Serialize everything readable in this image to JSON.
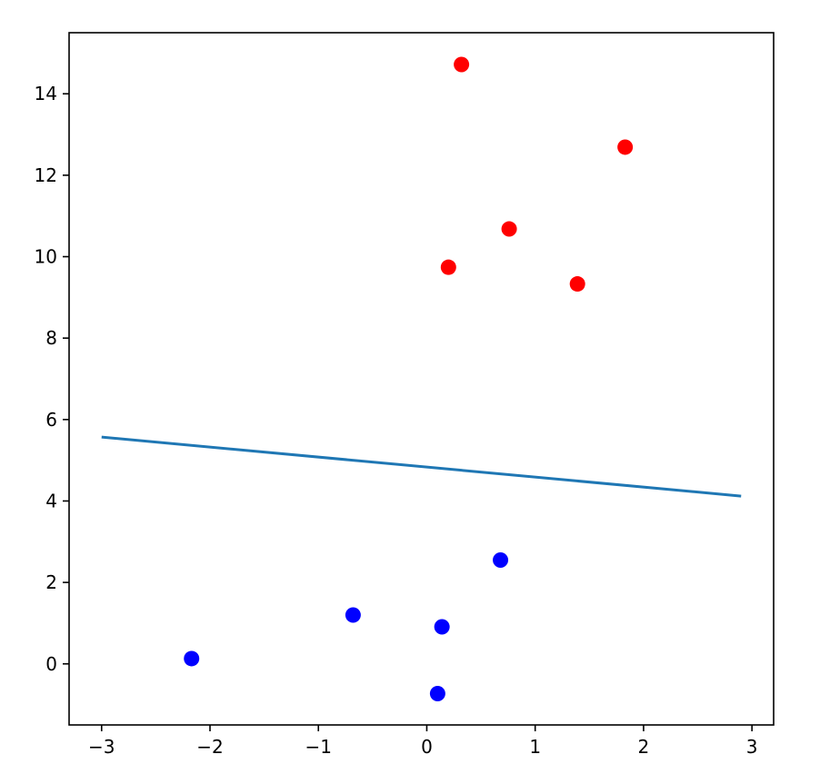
{
  "chart_data": {
    "type": "scatter",
    "title": "",
    "xlabel": "",
    "ylabel": "",
    "xlim": [
      -3.3,
      3.2
    ],
    "ylim": [
      -1.5,
      15.5
    ],
    "x_ticks": [
      -3,
      -2,
      -1,
      0,
      1,
      2,
      3
    ],
    "x_tick_labels": [
      "−3",
      "−2",
      "−1",
      "0",
      "1",
      "2",
      "3"
    ],
    "y_ticks": [
      0,
      2,
      4,
      6,
      8,
      10,
      12,
      14
    ],
    "y_tick_labels": [
      "0",
      "2",
      "4",
      "6",
      "8",
      "10",
      "12",
      "14"
    ],
    "grid": false,
    "legend": false,
    "series": [
      {
        "kind": "scatter",
        "color": "#ff0000",
        "points": [
          {
            "x": 0.32,
            "y": 14.72
          },
          {
            "x": 1.83,
            "y": 12.69
          },
          {
            "x": 0.76,
            "y": 10.68
          },
          {
            "x": 0.2,
            "y": 9.74
          },
          {
            "x": 1.39,
            "y": 9.33
          }
        ]
      },
      {
        "kind": "scatter",
        "color": "#0000ff",
        "points": [
          {
            "x": 0.68,
            "y": 2.55
          },
          {
            "x": -0.68,
            "y": 1.2
          },
          {
            "x": 0.14,
            "y": 0.91
          },
          {
            "x": -2.17,
            "y": 0.13
          },
          {
            "x": 0.1,
            "y": -0.73
          }
        ]
      },
      {
        "kind": "line",
        "color": "#1f77b4",
        "points": [
          {
            "x": -3.0,
            "y": 5.57
          },
          {
            "x": 2.9,
            "y": 4.12
          }
        ]
      }
    ]
  }
}
